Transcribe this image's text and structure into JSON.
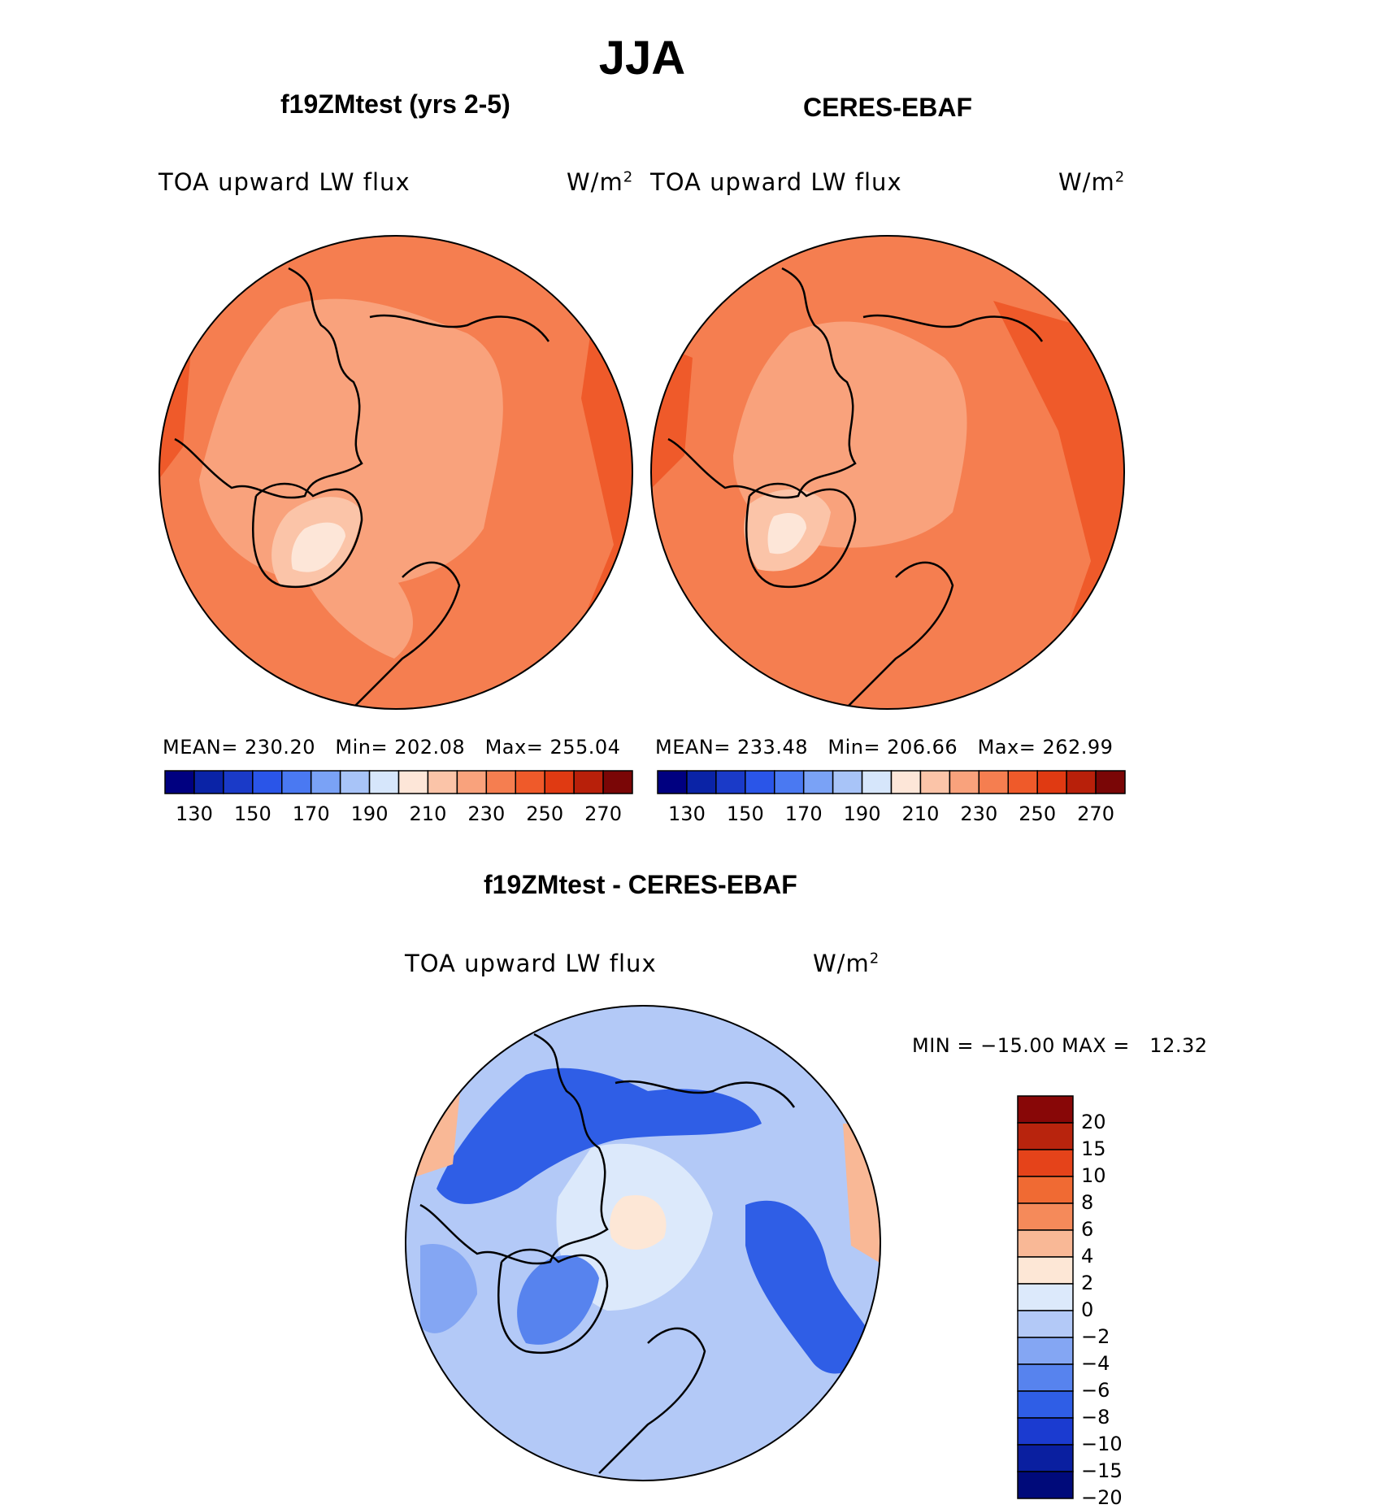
{
  "figure_title": "JJA",
  "colors": {
    "abs_levels": [
      "#000080",
      "#0a23a6",
      "#1a3ac8",
      "#2a55e8",
      "#4a79f2",
      "#7aa2f6",
      "#a8c4f8",
      "#d6e6fb",
      "#fde6d8",
      "#fbc4a8",
      "#f9a27c",
      "#f57e50",
      "#ef5a2a",
      "#e03a12",
      "#b8200a",
      "#7a0606"
    ],
    "diff_levels": [
      "#000a7a",
      "#0a1fa0",
      "#1b3bd0",
      "#2f5ee6",
      "#5783ee",
      "#84a6f3",
      "#b3c9f7",
      "#dce9fb",
      "#fde7d6",
      "#f9b896",
      "#f58a5a",
      "#f06a33",
      "#e5431a",
      "#b8240d",
      "#880707"
    ]
  },
  "chart_data": [
    {
      "type": "heatmap",
      "projection": "north-polar-stereographic",
      "title": "f19ZMtest (yrs 2-5)",
      "variable": "TOA upward LW flux",
      "units": "W/m",
      "units_exp": "2",
      "stats": {
        "mean_label": "MEAN=",
        "mean": "230.20",
        "min_label": "Min=",
        "min": "202.08",
        "max_label": "Max=",
        "max": "255.04"
      },
      "colorbar": {
        "orientation": "horizontal",
        "ticks": [
          "130",
          "150",
          "170",
          "190",
          "210",
          "230",
          "250",
          "270"
        ]
      }
    },
    {
      "type": "heatmap",
      "projection": "north-polar-stereographic",
      "title": "CERES-EBAF",
      "variable": "TOA upward LW flux",
      "units": "W/m",
      "units_exp": "2",
      "stats": {
        "mean_label": "MEAN=",
        "mean": "233.48",
        "min_label": "Min=",
        "min": "206.66",
        "max_label": "Max=",
        "max": "262.99"
      },
      "colorbar": {
        "orientation": "horizontal",
        "ticks": [
          "130",
          "150",
          "170",
          "190",
          "210",
          "230",
          "250",
          "270"
        ]
      }
    },
    {
      "type": "heatmap",
      "projection": "north-polar-stereographic",
      "title": "f19ZMtest - CERES-EBAF",
      "variable": "TOA upward LW flux",
      "units": "W/m",
      "units_exp": "2",
      "stats": {
        "min_label": "MIN =",
        "min": "−15.00",
        "max_label": "MAX =",
        "max": "12.32"
      },
      "colorbar": {
        "orientation": "vertical",
        "ticks": [
          "20",
          "15",
          "10",
          "8",
          "6",
          "4",
          "2",
          "0",
          "−2",
          "−4",
          "−6",
          "−8",
          "−10",
          "−15",
          "−20"
        ]
      }
    }
  ]
}
